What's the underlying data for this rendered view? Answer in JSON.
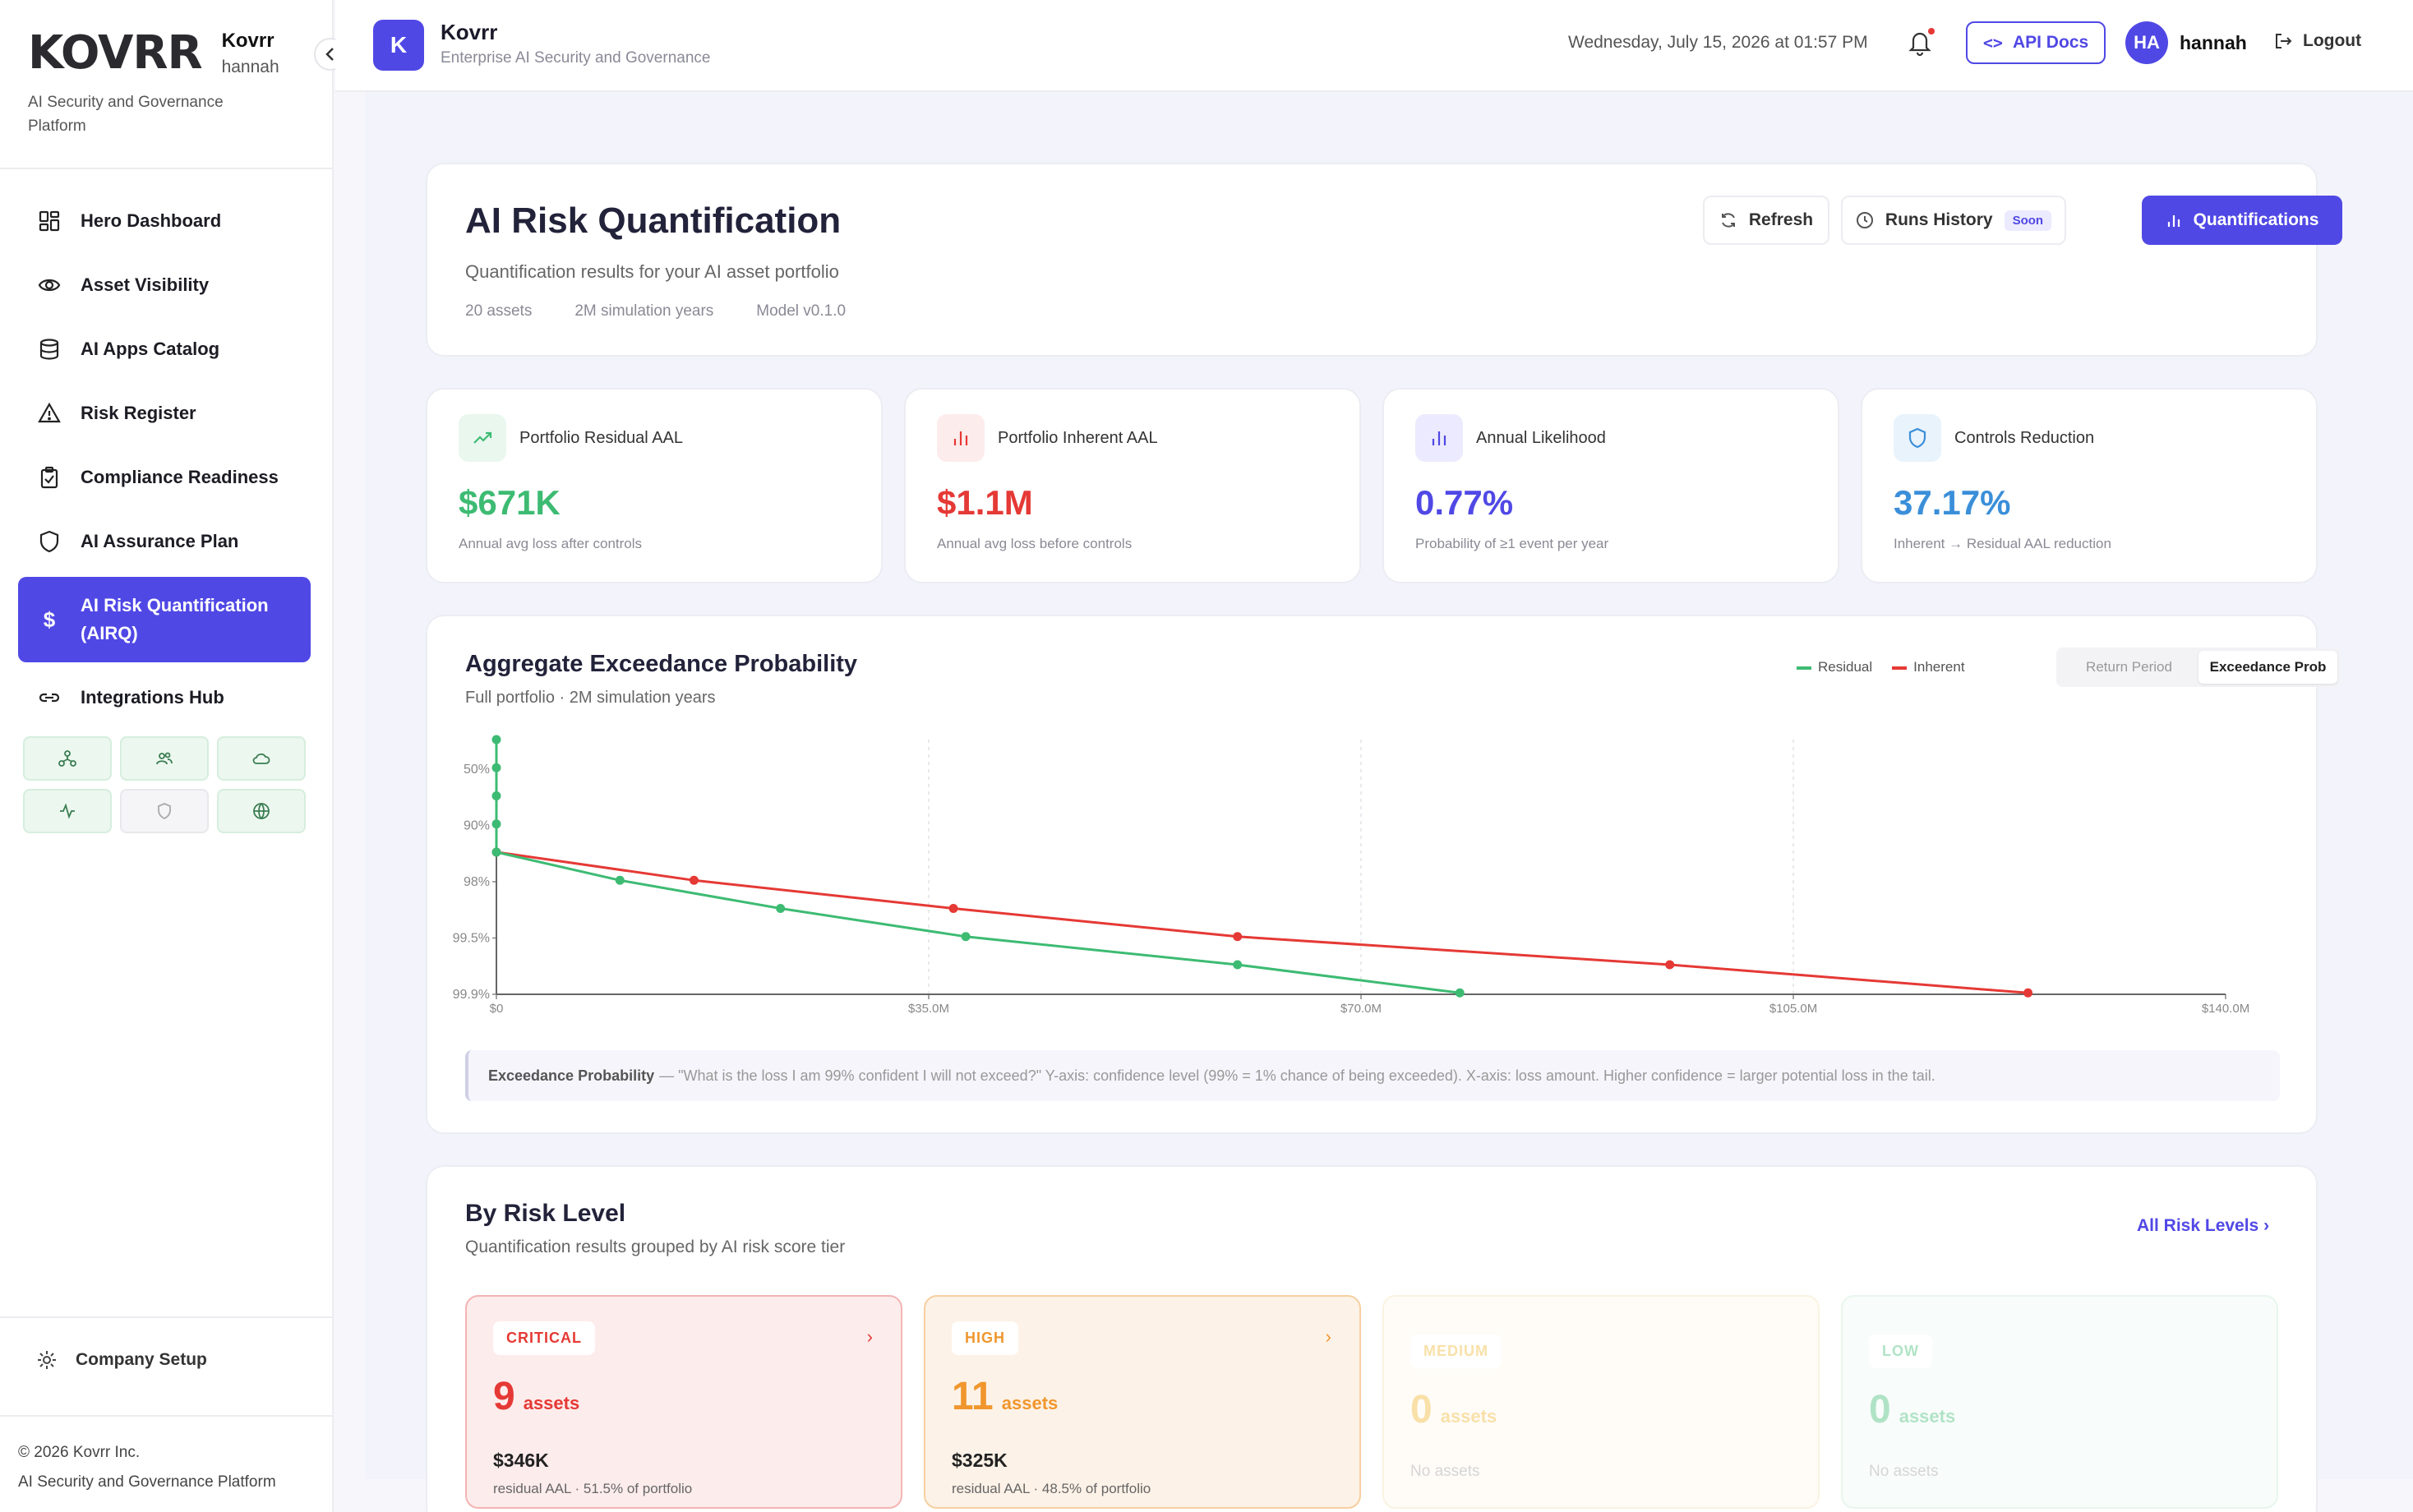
{
  "brand": {
    "logo": "KOVRR",
    "name": "Kovrr",
    "user": "hannah",
    "tagline": "AI Security and Governance Platform"
  },
  "nav": [
    {
      "label": "Hero Dashboard",
      "icon": "dashboard-icon"
    },
    {
      "label": "Asset Visibility",
      "icon": "eye-icon"
    },
    {
      "label": "AI Apps Catalog",
      "icon": "database-icon"
    },
    {
      "label": "Risk Register",
      "icon": "warning-icon"
    },
    {
      "label": "Compliance Readiness",
      "icon": "clipboard-check-icon"
    },
    {
      "label": "AI Assurance Plan",
      "icon": "shield-icon"
    },
    {
      "label": "AI Risk Quantification (AIRQ)",
      "icon": "dollar-icon",
      "active": true
    },
    {
      "label": "Integrations Hub",
      "icon": "link-icon"
    }
  ],
  "integrations": [
    "network-icon",
    "users-icon",
    "cloud-icon",
    "activity-icon",
    "shield-icon",
    "globe-icon"
  ],
  "footer": {
    "setup": "Company Setup",
    "copyright": "© 2026 Kovrr Inc.",
    "platform": "AI Security and Governance Platform"
  },
  "topbar": {
    "title": "Kovrr",
    "subtitle": "Enterprise AI Security and Governance",
    "logo_letter": "K",
    "date": "Wednesday, July 15, 2026 at 01:57 PM",
    "api": "API Docs",
    "avatar": "HA",
    "user": "hannah",
    "logout": "Logout"
  },
  "page": {
    "title": "AI Risk Quantification",
    "description": "Quantification results for your AI asset portfolio",
    "meta": [
      "20 assets",
      "2M simulation years",
      "Model v0.1.0"
    ],
    "refresh": "Refresh",
    "runs": "Runs History",
    "soon": "Soon",
    "quant": "Quantifications"
  },
  "kpis": [
    {
      "label": "Portfolio Residual AAL",
      "value": "$671K",
      "sub": "Annual avg loss after controls",
      "color": "#3dbb73",
      "icon": "trend-up-icon"
    },
    {
      "label": "Portfolio Inherent AAL",
      "value": "$1.1M",
      "sub": "Annual avg loss before controls",
      "color": "#e53935",
      "icon": "bar-chart-icon"
    },
    {
      "label": "Annual Likelihood",
      "value": "0.77%",
      "sub": "Probability of ≥1 event per year",
      "color": "#5048e5",
      "icon": "bar-chart-icon"
    },
    {
      "label": "Controls Reduction",
      "value": "37.17%",
      "sub": "Inherent → Residual AAL reduction",
      "color": "#3b8fd9",
      "icon": "shield-icon"
    }
  ],
  "chart": {
    "title": "Aggregate Exceedance Probability",
    "subtitle": "Full portfolio · 2M simulation years",
    "legend_residual": "Residual",
    "legend_inherent": "Inherent",
    "tab_return": "Return Period",
    "tab_exceed": "Exceedance Prob",
    "note_label": "Exceedance Probability",
    "note_text": "— \"What is the loss I am 99% confident I will not exceed?\" Y-axis: confidence level (99% = 1% chance of being exceeded). X-axis: loss amount. Higher confidence = larger potential loss in the tail."
  },
  "chart_data": {
    "type": "line",
    "x_ticks": [
      "$0",
      "$35.0M",
      "$70.0M",
      "$105.0M",
      "$140.0M"
    ],
    "xlim": [
      0,
      140
    ],
    "y_ticks": [
      "50%",
      "90%",
      "98%",
      "99.5%",
      "99.9%"
    ],
    "series": [
      {
        "name": "Residual",
        "color": "#3dbb73",
        "x": [
          0,
          0,
          0,
          0,
          0,
          10,
          23,
          38,
          60,
          78
        ],
        "y": [
          0,
          0.5,
          1,
          1.5,
          2,
          2.5,
          3,
          3.5,
          4,
          4.5
        ]
      },
      {
        "name": "Inherent",
        "color": "#e53935",
        "x": [
          0,
          16,
          37,
          60,
          95,
          124
        ],
        "y": [
          2,
          2.5,
          3,
          3.5,
          4,
          4.5
        ]
      }
    ]
  },
  "risk": {
    "title": "By Risk Level",
    "subtitle": "Quantification results grouped by AI risk score tier",
    "all": "All Risk Levels",
    "tiers": [
      {
        "label": "CRITICAL",
        "count": "9",
        "unit": "assets",
        "amount": "$346K",
        "sub": "residual AAL · 51.5% of portfolio",
        "color": "#e53935",
        "bg": "#fdecec",
        "border": "#f4b4b4"
      },
      {
        "label": "HIGH",
        "count": "11",
        "unit": "assets",
        "amount": "$325K",
        "sub": "residual AAL · 48.5% of portfolio",
        "color": "#f0962d",
        "bg": "#fdf2e7",
        "border": "#f6cfa0"
      },
      {
        "label": "MEDIUM",
        "count": "0",
        "unit": "assets",
        "none": "No assets",
        "color": "#f0b429",
        "bg": "#fffaf0",
        "border": "#f5e3b8"
      },
      {
        "label": "LOW",
        "count": "0",
        "unit": "assets",
        "none": "No assets",
        "color": "#3dbb73",
        "bg": "#f0faf4",
        "border": "#c6e9d3"
      }
    ]
  }
}
